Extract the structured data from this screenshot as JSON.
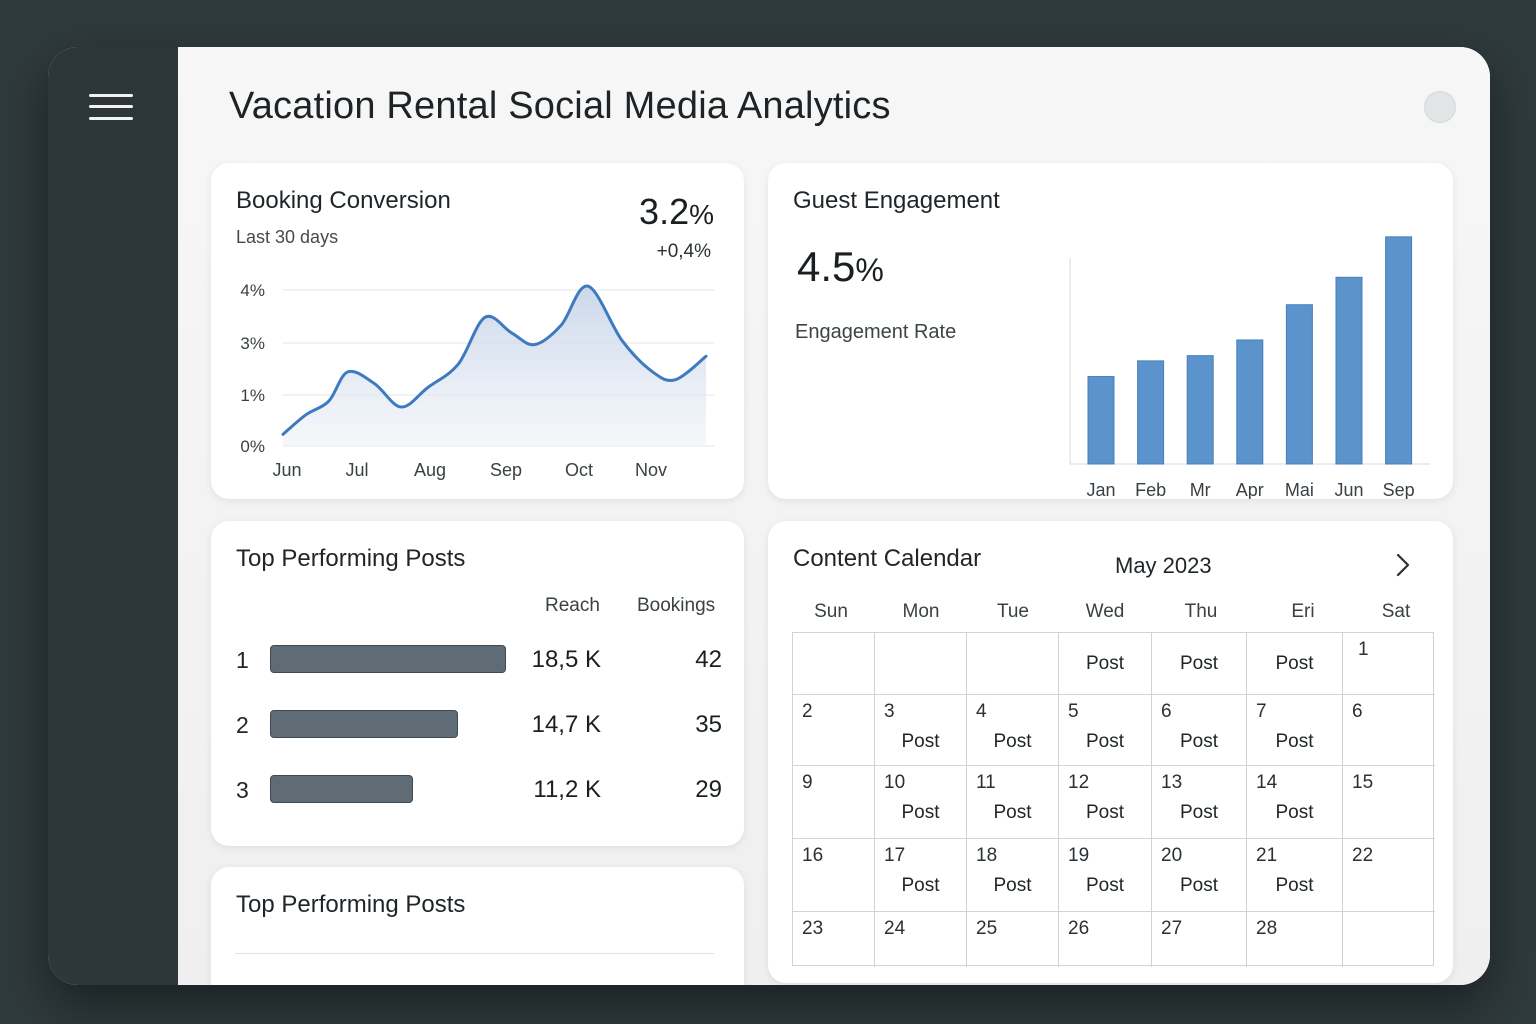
{
  "header": {
    "title": "Vacation Rental Social Media Analytics"
  },
  "sidebar": {
    "menu_icon": "hamburger-menu-icon"
  },
  "booking_conversion": {
    "title": "Booking Conversion",
    "subtitle": "Last 30 days",
    "value_number": "3.2",
    "value_unit": "%",
    "delta": "+0,4%",
    "chart_data": {
      "type": "area",
      "y_tick_labels": [
        "4%",
        "3%",
        "1%",
        "0%"
      ],
      "x_tick_labels": [
        "Jun",
        "Jul",
        "Aug",
        "Sep",
        "Oct",
        "Nov"
      ],
      "x": [
        0,
        0.3,
        0.6,
        0.85,
        1.2,
        1.55,
        1.9,
        2.3,
        2.65,
        3.0,
        3.3,
        3.65,
        4.0,
        4.45,
        4.85,
        5.15,
        5.55
      ],
      "y": [
        0.3,
        0.8,
        1.15,
        1.9,
        1.6,
        1.0,
        1.5,
        2.1,
        3.3,
        2.9,
        2.6,
        3.1,
        4.1,
        2.7,
        1.9,
        1.7,
        2.3
      ],
      "ylim": [
        0,
        4
      ],
      "grid": true,
      "color": "#3f7ac0"
    }
  },
  "guest_engagement": {
    "title": "Guest Engagement",
    "value_number": "4.5",
    "value_unit": "%",
    "label": "Engagement Rate",
    "chart_data": {
      "type": "bar",
      "categories": [
        "Jan",
        "Feb",
        "Mr",
        "Apr",
        "Mai",
        "Jun",
        "Sep"
      ],
      "values": [
        67,
        79,
        83,
        95,
        122,
        143,
        174
      ],
      "ylim": [
        0,
        180
      ],
      "color": "#5b93cc"
    }
  },
  "top_posts": {
    "title": "Top Performing Posts",
    "columns": {
      "reach": "Reach",
      "bookings": "Bookings"
    },
    "rows": [
      {
        "rank": "1",
        "reach": "18,5 K",
        "bookings": "42",
        "reach_value": 18.5
      },
      {
        "rank": "2",
        "reach": "14,7 K",
        "bookings": "35",
        "reach_value": 14.7
      },
      {
        "rank": "3",
        "reach": "11,2 K",
        "bookings": "29",
        "reach_value": 11.2
      }
    ]
  },
  "top_posts_2": {
    "title": "Top Performing Posts"
  },
  "calendar": {
    "title": "Content Calendar",
    "month": "May 2023",
    "next_icon": "chevron-right-icon",
    "days_of_week": [
      "Sun",
      "Mon",
      "Tue",
      "Wed",
      "Thu",
      "Eri",
      "Sat"
    ],
    "post_label": "Post",
    "weeks": [
      [
        {
          "d": "",
          "p": false
        },
        {
          "d": "",
          "p": false
        },
        {
          "d": "",
          "p": false
        },
        {
          "d": "",
          "p": true
        },
        {
          "d": "",
          "p": true
        },
        {
          "d": "",
          "p": true
        },
        {
          "d": "1",
          "p": false
        }
      ],
      [
        {
          "d": "2",
          "p": false
        },
        {
          "d": "3",
          "p": true
        },
        {
          "d": "4",
          "p": true
        },
        {
          "d": "5",
          "p": true
        },
        {
          "d": "6",
          "p": true
        },
        {
          "d": "7",
          "p": true
        },
        {
          "d": "6",
          "p": false
        }
      ],
      [
        {
          "d": "9",
          "p": false
        },
        {
          "d": "10",
          "p": true
        },
        {
          "d": "11",
          "p": true
        },
        {
          "d": "12",
          "p": true
        },
        {
          "d": "13",
          "p": true
        },
        {
          "d": "14",
          "p": true
        },
        {
          "d": "15",
          "p": false
        }
      ],
      [
        {
          "d": "16",
          "p": false
        },
        {
          "d": "17",
          "p": true
        },
        {
          "d": "18",
          "p": true
        },
        {
          "d": "19",
          "p": true
        },
        {
          "d": "20",
          "p": true
        },
        {
          "d": "21",
          "p": true
        },
        {
          "d": "22",
          "p": false
        }
      ],
      [
        {
          "d": "23",
          "p": false
        },
        {
          "d": "24",
          "p": false
        },
        {
          "d": "25",
          "p": false
        },
        {
          "d": "26",
          "p": false
        },
        {
          "d": "27",
          "p": false
        },
        {
          "d": "28",
          "p": false
        },
        {
          "d": "",
          "p": false
        }
      ]
    ]
  }
}
